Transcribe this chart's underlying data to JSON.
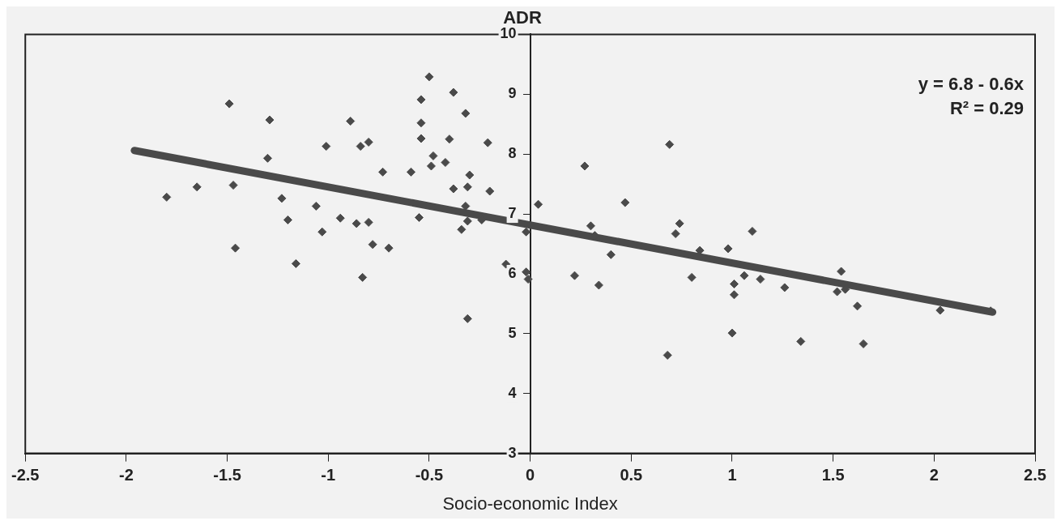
{
  "chart_data": {
    "type": "scatter",
    "title": "ADR",
    "xlabel": "Socio-economic Index",
    "xlim": [
      -2.5,
      2.5
    ],
    "xticks": [
      -2.5,
      -2,
      -1.5,
      -1,
      -0.5,
      0,
      0.5,
      1,
      1.5,
      2,
      2.5
    ],
    "ylim": [
      3,
      10
    ],
    "yticks": [
      3,
      4,
      5,
      6,
      7,
      8,
      9,
      10
    ],
    "grid": false,
    "legend": false,
    "marker": "diamond",
    "annotations": [
      "y = 6.8 - 0.6x",
      "R² = 0.29"
    ],
    "series": [
      {
        "color": "#4a4a4a",
        "x": [
          -1.49,
          -1.29,
          -0.89,
          -1.01,
          -0.84,
          -0.8,
          -0.54,
          -0.54,
          -0.54,
          -1.3,
          -0.73,
          -0.59,
          -1.8,
          -1.65,
          -1.47,
          -1.23,
          -1.06,
          -1.2,
          -0.94,
          -0.86,
          -0.8,
          -1.03,
          -0.78,
          -0.7,
          -0.55,
          -1.46,
          -1.16,
          -0.83,
          -0.5,
          -0.38,
          -0.32,
          -0.4,
          -0.21,
          -0.48,
          -0.49,
          -0.42,
          -0.3,
          -0.38,
          -0.31,
          -0.2,
          0.04,
          0.47,
          0.69,
          0.27,
          -0.32,
          -0.31,
          -0.34,
          -0.24,
          -0.02,
          0.3,
          0.32,
          0.4,
          -0.12,
          -0.02,
          -0.01,
          0.22,
          0.34,
          -0.31,
          0.74,
          0.72,
          0.84,
          0.98,
          1.1,
          0.8,
          1.06,
          1.14,
          1.01,
          1.01,
          1.26,
          1.54,
          1.52,
          1.56,
          1.62,
          1.0,
          1.34,
          1.65,
          0.68,
          2.03,
          2.28
        ],
        "values": [
          8.84,
          8.57,
          8.55,
          8.13,
          8.13,
          8.2,
          8.91,
          8.52,
          8.26,
          7.93,
          7.7,
          7.7,
          7.28,
          7.45,
          7.48,
          7.26,
          7.13,
          6.9,
          6.93,
          6.84,
          6.86,
          6.7,
          6.49,
          6.43,
          6.94,
          6.43,
          6.17,
          5.94,
          9.29,
          9.03,
          8.68,
          8.25,
          8.19,
          7.97,
          7.8,
          7.86,
          7.65,
          7.42,
          7.45,
          7.38,
          7.16,
          7.19,
          8.16,
          7.8,
          7.13,
          6.88,
          6.74,
          6.9,
          6.7,
          6.8,
          6.64,
          6.32,
          6.16,
          6.03,
          5.91,
          5.97,
          5.81,
          5.25,
          6.84,
          6.67,
          6.39,
          6.42,
          6.71,
          5.94,
          5.97,
          5.91,
          5.83,
          5.65,
          5.77,
          6.04,
          5.7,
          5.74,
          5.46,
          5.01,
          4.87,
          4.83,
          4.64,
          5.39,
          5.38
        ]
      },
      {
        "type": "line",
        "color": "#4a4a4a",
        "x": [
          -1.96,
          2.29
        ],
        "values": [
          8.06,
          5.36
        ],
        "marker": "none",
        "line_style": "solid"
      }
    ]
  }
}
